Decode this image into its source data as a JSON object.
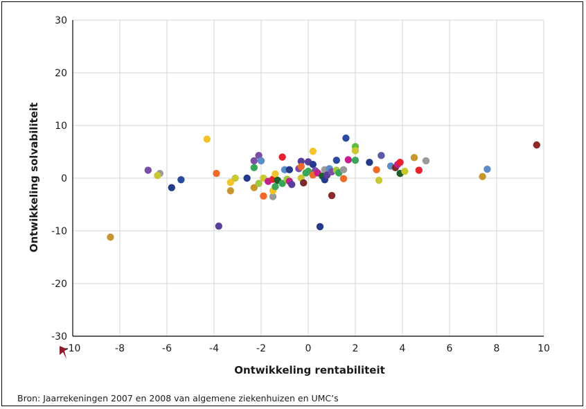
{
  "source_note": "Bron: Jaarrekeningen 2007 en 2008 van algemene ziekenhuizen en UMC’s",
  "marker_icon": "red-arrow-marker-icon",
  "chart_data": {
    "type": "scatter",
    "xlabel": "Ontwikkeling rentabiliteit",
    "ylabel": "Ontwikkeling solvabiliteit",
    "xlim": [
      -10,
      10
    ],
    "ylim": [
      -30,
      30
    ],
    "xticks": [
      -10,
      -8,
      -6,
      -4,
      -2,
      0,
      2,
      4,
      6,
      8,
      10
    ],
    "yticks": [
      -30,
      -20,
      -10,
      0,
      10,
      20,
      30
    ],
    "grid": true,
    "points": [
      {
        "x": -8.4,
        "y": -11.2,
        "color": "#c8962e"
      },
      {
        "x": -6.8,
        "y": 1.5,
        "color": "#7b4fa6"
      },
      {
        "x": -6.3,
        "y": 0.9,
        "color": "#9a9a9a"
      },
      {
        "x": -6.4,
        "y": 0.5,
        "color": "#c9c732"
      },
      {
        "x": -5.8,
        "y": -1.8,
        "color": "#263a8c"
      },
      {
        "x": -5.4,
        "y": -0.3,
        "color": "#2a4aa0"
      },
      {
        "x": -4.3,
        "y": 7.4,
        "color": "#f2c42a"
      },
      {
        "x": -3.9,
        "y": 0.9,
        "color": "#f06a2a"
      },
      {
        "x": -3.8,
        "y": -9.1,
        "color": "#5a3f9a"
      },
      {
        "x": -3.3,
        "y": -2.4,
        "color": "#c8962e"
      },
      {
        "x": -3.3,
        "y": -0.8,
        "color": "#f2c42a"
      },
      {
        "x": -3.1,
        "y": 0.0,
        "color": "#c9c732"
      },
      {
        "x": -2.6,
        "y": 0.0,
        "color": "#263a8c"
      },
      {
        "x": -2.3,
        "y": 3.3,
        "color": "#7b4fa6"
      },
      {
        "x": -2.1,
        "y": 4.3,
        "color": "#7b4fa6"
      },
      {
        "x": -2.0,
        "y": 3.3,
        "color": "#5b8ec9"
      },
      {
        "x": -2.3,
        "y": 2.0,
        "color": "#3aa657"
      },
      {
        "x": -2.3,
        "y": -1.8,
        "color": "#c8962e"
      },
      {
        "x": -2.1,
        "y": -1.0,
        "color": "#9fc83a"
      },
      {
        "x": -1.9,
        "y": 0.0,
        "color": "#c9c732"
      },
      {
        "x": -1.9,
        "y": -3.4,
        "color": "#f06a2a"
      },
      {
        "x": -1.7,
        "y": -0.6,
        "color": "#c41e8a"
      },
      {
        "x": -1.5,
        "y": -0.2,
        "color": "#e8212e"
      },
      {
        "x": -1.5,
        "y": -3.5,
        "color": "#9a9a9a"
      },
      {
        "x": -1.5,
        "y": -2.4,
        "color": "#f2c42a"
      },
      {
        "x": -1.4,
        "y": -1.6,
        "color": "#3aa657"
      },
      {
        "x": -1.4,
        "y": 0.8,
        "color": "#f2c42a"
      },
      {
        "x": -1.3,
        "y": -0.4,
        "color": "#1e5e2a"
      },
      {
        "x": -1.1,
        "y": 4.0,
        "color": "#e8212e"
      },
      {
        "x": -1.1,
        "y": -1.0,
        "color": "#3aa657"
      },
      {
        "x": -1.0,
        "y": 1.6,
        "color": "#5b8ec9"
      },
      {
        "x": -0.9,
        "y": -0.2,
        "color": "#9fc83a"
      },
      {
        "x": -0.8,
        "y": 1.6,
        "color": "#263a8c"
      },
      {
        "x": -0.8,
        "y": -0.6,
        "color": "#c41e8a"
      },
      {
        "x": -0.7,
        "y": -1.2,
        "color": "#5a3f9a"
      },
      {
        "x": -0.4,
        "y": 1.8,
        "color": "#7b4fa6"
      },
      {
        "x": -0.3,
        "y": 3.2,
        "color": "#5a3f9a"
      },
      {
        "x": -0.3,
        "y": 2.2,
        "color": "#f06a2a"
      },
      {
        "x": -0.3,
        "y": 0.0,
        "color": "#c9c732"
      },
      {
        "x": -0.2,
        "y": -0.9,
        "color": "#7a2a2a"
      },
      {
        "x": -0.1,
        "y": 1.0,
        "color": "#3aa657"
      },
      {
        "x": 0.0,
        "y": 3.1,
        "color": "#5a3f9a"
      },
      {
        "x": 0.0,
        "y": 1.3,
        "color": "#3aa657"
      },
      {
        "x": 0.2,
        "y": 5.1,
        "color": "#f2c42a"
      },
      {
        "x": 0.2,
        "y": 2.6,
        "color": "#263a8c"
      },
      {
        "x": 0.3,
        "y": 1.4,
        "color": "#7b4fa6"
      },
      {
        "x": 0.2,
        "y": 0.6,
        "color": "#f06a2a"
      },
      {
        "x": 0.4,
        "y": 1.0,
        "color": "#c41e8a"
      },
      {
        "x": 0.5,
        "y": -9.2,
        "color": "#263a8c"
      },
      {
        "x": 0.6,
        "y": 0.4,
        "color": "#1e5e2a"
      },
      {
        "x": 0.7,
        "y": 1.6,
        "color": "#9a9a9a"
      },
      {
        "x": 0.7,
        "y": -0.3,
        "color": "#263a8c"
      },
      {
        "x": 0.8,
        "y": 0.6,
        "color": "#5a3f9a"
      },
      {
        "x": 0.9,
        "y": 1.8,
        "color": "#5b8ec9"
      },
      {
        "x": 1.0,
        "y": -3.3,
        "color": "#8a2a2a"
      },
      {
        "x": 1.0,
        "y": 1.2,
        "color": "#7b4fa6"
      },
      {
        "x": 1.2,
        "y": 3.4,
        "color": "#2a4aa0"
      },
      {
        "x": 1.2,
        "y": 1.5,
        "color": "#9fc83a"
      },
      {
        "x": 1.3,
        "y": 1.0,
        "color": "#3aa657"
      },
      {
        "x": 1.5,
        "y": 1.6,
        "color": "#9a9a9a"
      },
      {
        "x": 1.5,
        "y": -0.1,
        "color": "#f06a2a"
      },
      {
        "x": 1.6,
        "y": 7.6,
        "color": "#2a4aa0"
      },
      {
        "x": 1.7,
        "y": 3.5,
        "color": "#c41e8a"
      },
      {
        "x": 2.0,
        "y": 6.0,
        "color": "#5bbf3e"
      },
      {
        "x": 2.0,
        "y": 5.2,
        "color": "#c9c732"
      },
      {
        "x": 2.0,
        "y": 3.4,
        "color": "#3aa657"
      },
      {
        "x": 2.6,
        "y": 3.0,
        "color": "#263a8c"
      },
      {
        "x": 2.9,
        "y": 1.6,
        "color": "#f06a2a"
      },
      {
        "x": 3.0,
        "y": -0.4,
        "color": "#c9c732"
      },
      {
        "x": 3.1,
        "y": 4.3,
        "color": "#5a5aa8"
      },
      {
        "x": 3.5,
        "y": 2.3,
        "color": "#5b8ec9"
      },
      {
        "x": 3.7,
        "y": 2.0,
        "color": "#7a2a2a"
      },
      {
        "x": 3.8,
        "y": 2.6,
        "color": "#c41e8a"
      },
      {
        "x": 3.9,
        "y": 3.0,
        "color": "#e8212e"
      },
      {
        "x": 3.9,
        "y": 0.9,
        "color": "#1e5e2a"
      },
      {
        "x": 4.1,
        "y": 1.3,
        "color": "#c9c732"
      },
      {
        "x": 4.5,
        "y": 3.9,
        "color": "#c8962e"
      },
      {
        "x": 4.7,
        "y": 1.5,
        "color": "#e8212e"
      },
      {
        "x": 5.0,
        "y": 3.3,
        "color": "#9a9a9a"
      },
      {
        "x": 7.4,
        "y": 0.3,
        "color": "#c8962e"
      },
      {
        "x": 7.6,
        "y": 1.7,
        "color": "#5b8ec9"
      },
      {
        "x": 9.7,
        "y": 6.3,
        "color": "#8a2a2a"
      }
    ]
  }
}
